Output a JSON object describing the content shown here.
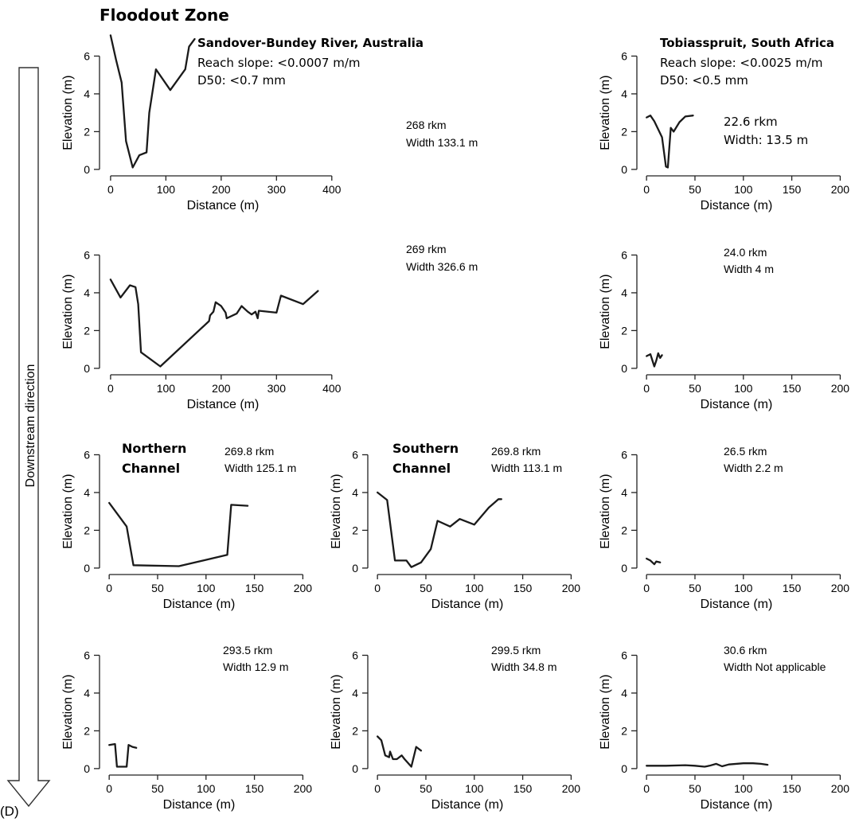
{
  "figure": {
    "zone_title": "Floodout Zone",
    "direction_label": "Downstream direction",
    "panel_label": "(D)",
    "sites": [
      {
        "name": "Sandover-Bundey River, Australia",
        "slope": "Reach slope: <0.0007 m/m",
        "d50": "D50: <0.7 mm"
      },
      {
        "name": "Tobiasspruit, South Africa",
        "slope": "Reach slope: <0.0025 m/m",
        "d50": "D50: <0.5 mm"
      }
    ]
  },
  "chart_data": [
    {
      "type": "line",
      "xlabel": "Distance (m)",
      "ylabel": "Elevation (m)",
      "xlim": [
        -20,
        455
      ],
      "ylim": [
        -0.3,
        7.2
      ],
      "xticks": [
        0,
        100,
        200,
        300,
        400
      ],
      "yticks": [
        0,
        2,
        4,
        6
      ],
      "annotations": [
        "268 rkm",
        "Width 133.1 m"
      ],
      "x": [
        0,
        10,
        20,
        28,
        40,
        52,
        65,
        70,
        82,
        108,
        135,
        142,
        152
      ],
      "y": [
        7.1,
        5.8,
        4.6,
        1.5,
        0.1,
        0.75,
        0.9,
        3.0,
        5.3,
        4.2,
        5.3,
        6.5,
        6.9
      ]
    },
    {
      "type": "line",
      "xlabel": "Distance (m)",
      "ylabel": "Elevation (m)",
      "xlim": [
        -20,
        455
      ],
      "ylim": [
        -0.3,
        7.2
      ],
      "xticks": [
        0,
        100,
        200,
        300,
        400
      ],
      "yticks": [
        0,
        2,
        4,
        6
      ],
      "annotations": [
        "269 rkm",
        "Width 326.6 m"
      ],
      "x": [
        0,
        18,
        35,
        45,
        50,
        55,
        90,
        178,
        180,
        186,
        190,
        200,
        208,
        210,
        228,
        237,
        248,
        255,
        262,
        266,
        268,
        300,
        308,
        348,
        375
      ],
      "y": [
        4.7,
        3.75,
        4.4,
        4.3,
        3.4,
        0.85,
        0.1,
        2.5,
        2.8,
        3.0,
        3.5,
        3.3,
        2.95,
        2.65,
        2.9,
        3.3,
        3.0,
        2.85,
        3.0,
        2.65,
        3.05,
        2.95,
        3.85,
        3.4,
        4.1
      ]
    },
    {
      "type": "line",
      "xlabel": "Distance (m)",
      "ylabel": "Elevation (m)",
      "xlim": [
        -10,
        212
      ],
      "ylim": [
        -0.3,
        7.2
      ],
      "xticks": [
        0,
        50,
        100,
        150,
        200
      ],
      "yticks": [
        0,
        2,
        4,
        6
      ],
      "annotations": [
        "Northern",
        "Channel",
        "269.8 rkm",
        "Width 125.1 m"
      ],
      "x": [
        0,
        18,
        25,
        72,
        122,
        126,
        143
      ],
      "y": [
        3.45,
        2.2,
        0.15,
        0.1,
        0.7,
        3.35,
        3.3
      ]
    },
    {
      "type": "line",
      "xlabel": "Distance (m)",
      "ylabel": "Elevation (m)",
      "xlim": [
        -10,
        212
      ],
      "ylim": [
        -0.3,
        7.2
      ],
      "xticks": [
        0,
        50,
        100,
        150,
        200
      ],
      "yticks": [
        0,
        2,
        4,
        6
      ],
      "annotations": [
        "Southern",
        "Channel",
        "269.8 rkm",
        "Width 113.1 m"
      ],
      "x": [
        0,
        10,
        18,
        30,
        35,
        45,
        55,
        62,
        75,
        85,
        100,
        115,
        125,
        128
      ],
      "y": [
        4.0,
        3.6,
        0.4,
        0.4,
        0.05,
        0.3,
        1.0,
        2.5,
        2.2,
        2.6,
        2.3,
        3.2,
        3.65,
        3.65
      ]
    },
    {
      "type": "line",
      "xlabel": "Distance (m)",
      "ylabel": "Elevation (m)",
      "xlim": [
        -10,
        212
      ],
      "ylim": [
        -0.3,
        7.2
      ],
      "xticks": [
        0,
        50,
        100,
        150,
        200
      ],
      "yticks": [
        0,
        2,
        4,
        6
      ],
      "annotations": [
        "293.5 rkm",
        "Width 12.9 m"
      ],
      "x": [
        0,
        6,
        8,
        18,
        20,
        24,
        28
      ],
      "y": [
        1.25,
        1.3,
        0.1,
        0.1,
        1.25,
        1.15,
        1.1
      ]
    },
    {
      "type": "line",
      "xlabel": "Distance (m)",
      "ylabel": "Elevation (m)",
      "xlim": [
        -10,
        212
      ],
      "ylim": [
        -0.3,
        7.2
      ],
      "xticks": [
        0,
        50,
        100,
        150,
        200
      ],
      "yticks": [
        0,
        2,
        4,
        6
      ],
      "annotations": [
        "299.5 rkm",
        "Width 34.8 m"
      ],
      "x": [
        0,
        4,
        8,
        12,
        13,
        16,
        20,
        25,
        28,
        35,
        40,
        45
      ],
      "y": [
        1.7,
        1.5,
        0.7,
        0.6,
        0.9,
        0.5,
        0.5,
        0.7,
        0.5,
        0.1,
        1.15,
        0.95
      ]
    },
    {
      "type": "line",
      "xlabel": "Distance (m)",
      "ylabel": "Elevation (m)",
      "xlim": [
        -10,
        212
      ],
      "ylim": [
        -0.3,
        7.2
      ],
      "xticks": [
        0,
        50,
        100,
        150,
        200
      ],
      "yticks": [
        0,
        2,
        4,
        6
      ],
      "annotations": [
        "22.6 rkm",
        "Width: 13.5 m"
      ],
      "x": [
        0,
        4,
        8,
        16,
        20,
        22,
        25,
        28,
        34,
        40,
        48
      ],
      "y": [
        2.75,
        2.85,
        2.55,
        1.7,
        0.15,
        0.1,
        2.2,
        2.0,
        2.5,
        2.8,
        2.85
      ]
    },
    {
      "type": "line",
      "xlabel": "Distance (m)",
      "ylabel": "Elevation (m)",
      "xlim": [
        -10,
        212
      ],
      "ylim": [
        -0.3,
        7.2
      ],
      "xticks": [
        0,
        50,
        100,
        150,
        200
      ],
      "yticks": [
        0,
        2,
        4,
        6
      ],
      "annotations": [
        "24.0 rkm",
        "Width 4 m"
      ],
      "x": [
        0,
        4,
        8,
        10,
        12,
        14,
        16
      ],
      "y": [
        0.65,
        0.75,
        0.1,
        0.4,
        0.8,
        0.55,
        0.7
      ]
    },
    {
      "type": "line",
      "xlabel": "Distance (m)",
      "ylabel": "Elevation (m)",
      "xlim": [
        -10,
        212
      ],
      "ylim": [
        -0.3,
        7.2
      ],
      "xticks": [
        0,
        50,
        100,
        150,
        200
      ],
      "yticks": [
        0,
        2,
        4,
        6
      ],
      "annotations": [
        "26.5 rkm",
        "Width 2.2 m"
      ],
      "x": [
        0,
        4,
        8,
        10,
        14
      ],
      "y": [
        0.5,
        0.4,
        0.2,
        0.35,
        0.3
      ]
    },
    {
      "type": "line",
      "xlabel": "Distance (m)",
      "ylabel": "Elevation (m)",
      "xlim": [
        -10,
        212
      ],
      "ylim": [
        -0.3,
        7.2
      ],
      "xticks": [
        0,
        50,
        100,
        150,
        200
      ],
      "yticks": [
        0,
        2,
        4,
        6
      ],
      "annotations": [
        "30.6 rkm",
        "Width Not applicable"
      ],
      "x": [
        0,
        20,
        40,
        50,
        60,
        65,
        72,
        78,
        85,
        100,
        110,
        118,
        125
      ],
      "y": [
        0.15,
        0.15,
        0.18,
        0.15,
        0.1,
        0.15,
        0.25,
        0.12,
        0.22,
        0.28,
        0.28,
        0.25,
        0.2
      ]
    }
  ]
}
